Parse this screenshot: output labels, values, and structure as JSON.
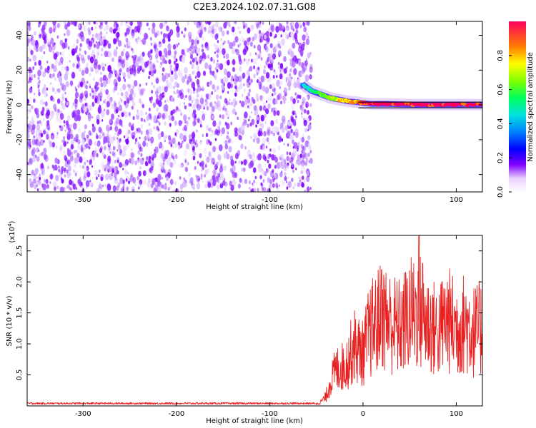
{
  "title": "C2E3.2024.102.07.31.G08",
  "colors": {
    "scatter": "#7f00ff",
    "snr_line": "#e82020",
    "axis": "#000000"
  },
  "chart_data": [
    {
      "type": "heatmap",
      "xlabel": "Height of straight line (km)",
      "ylabel": "Frequency (Hz)",
      "xlim": [
        -360,
        128
      ],
      "ylim": [
        -50,
        48
      ],
      "x_ticks": [
        {
          "value": -300,
          "label": "-300"
        },
        {
          "value": -200,
          "label": "-200"
        },
        {
          "value": -100,
          "label": "-100"
        },
        {
          "value": 0,
          "label": "0"
        },
        {
          "value": 100,
          "label": "100"
        }
      ],
      "y_ticks": [
        {
          "value": -40,
          "label": "-40"
        },
        {
          "value": -20,
          "label": "-20"
        },
        {
          "value": 0,
          "label": "0"
        },
        {
          "value": 20,
          "label": "20"
        },
        {
          "value": 40,
          "label": "40"
        }
      ],
      "noise_region": {
        "x_start": -360,
        "x_end": -60,
        "level": 0.15
      },
      "signal_track": [
        {
          "x": -65,
          "y": 12,
          "amp": 0.35
        },
        {
          "x": -55,
          "y": 8,
          "amp": 0.45
        },
        {
          "x": -45,
          "y": 6,
          "amp": 0.55
        },
        {
          "x": -35,
          "y": 4,
          "amp": 0.6
        },
        {
          "x": -25,
          "y": 3,
          "amp": 0.7
        },
        {
          "x": -15,
          "y": 2,
          "amp": 0.75
        },
        {
          "x": -5,
          "y": 1.5,
          "amp": 0.8
        },
        {
          "x": 0,
          "y": 1,
          "amp": 0.85
        },
        {
          "x": 10,
          "y": 0.5,
          "amp": 0.85
        },
        {
          "x": 25,
          "y": 0.5,
          "amp": 0.9
        },
        {
          "x": 40,
          "y": 0.3,
          "amp": 0.9
        },
        {
          "x": 60,
          "y": 0.2,
          "amp": 0.9
        },
        {
          "x": 80,
          "y": 0.2,
          "amp": 0.9
        },
        {
          "x": 100,
          "y": 0.2,
          "amp": 0.9
        },
        {
          "x": 128,
          "y": 0.2,
          "amp": 0.9
        }
      ],
      "colorbar": {
        "label": "Normalized spectral amplitude",
        "range": [
          0,
          1
        ],
        "ticks": [
          {
            "value": 0.0,
            "label": "0.0"
          },
          {
            "value": 0.2,
            "label": "0.2"
          },
          {
            "value": 0.4,
            "label": "0.4"
          },
          {
            "value": 0.6,
            "label": "0.6"
          },
          {
            "value": 0.8,
            "label": "0.8"
          }
        ]
      }
    },
    {
      "type": "line",
      "xlabel": "Height of straight line (km)",
      "ylabel": "SNR (10 * v/v)",
      "y_multiplier": "(x10",
      "y_multiplier_exp": "4",
      "y_multiplier_close": ")",
      "xlim": [
        -360,
        128
      ],
      "ylim": [
        0,
        2.75
      ],
      "x_ticks": [
        {
          "value": -300,
          "label": "-300"
        },
        {
          "value": -200,
          "label": "-200"
        },
        {
          "value": -100,
          "label": "-100"
        },
        {
          "value": 0,
          "label": "0"
        },
        {
          "value": 100,
          "label": "100"
        }
      ],
      "y_ticks": [
        {
          "value": 0.5,
          "label": "0.5"
        },
        {
          "value": 1.0,
          "label": "1.0"
        },
        {
          "value": 1.5,
          "label": "1.5"
        },
        {
          "value": 2.0,
          "label": "2.0"
        },
        {
          "value": 2.5,
          "label": "2.5"
        }
      ],
      "envelope": [
        {
          "x": -360,
          "y": 0.04
        },
        {
          "x": -50,
          "y": 0.04
        },
        {
          "x": -45,
          "y": 0.1
        },
        {
          "x": -40,
          "y": 0.2
        },
        {
          "x": -35,
          "y": 0.55
        },
        {
          "x": -30,
          "y": 0.8
        },
        {
          "x": -25,
          "y": 0.9
        },
        {
          "x": -20,
          "y": 0.9
        },
        {
          "x": -15,
          "y": 1.1
        },
        {
          "x": -10,
          "y": 1.4
        },
        {
          "x": -5,
          "y": 1.3
        },
        {
          "x": 0,
          "y": 1.2
        },
        {
          "x": 5,
          "y": 1.6
        },
        {
          "x": 10,
          "y": 1.8
        },
        {
          "x": 15,
          "y": 1.9
        },
        {
          "x": 20,
          "y": 2.1
        },
        {
          "x": 30,
          "y": 1.9
        },
        {
          "x": 40,
          "y": 1.8
        },
        {
          "x": 50,
          "y": 2.1
        },
        {
          "x": 60,
          "y": 2.2
        },
        {
          "x": 70,
          "y": 1.9
        },
        {
          "x": 80,
          "y": 1.7
        },
        {
          "x": 90,
          "y": 2.0
        },
        {
          "x": 100,
          "y": 1.8
        },
        {
          "x": 110,
          "y": 1.9
        },
        {
          "x": 120,
          "y": 1.7
        },
        {
          "x": 128,
          "y": 1.8
        }
      ],
      "peaks": [
        {
          "x": 20,
          "y": 2.2
        },
        {
          "x": 60,
          "y": 2.75
        },
        {
          "x": 64,
          "y": 2.3
        },
        {
          "x": 125,
          "y": 1.9
        }
      ]
    }
  ]
}
